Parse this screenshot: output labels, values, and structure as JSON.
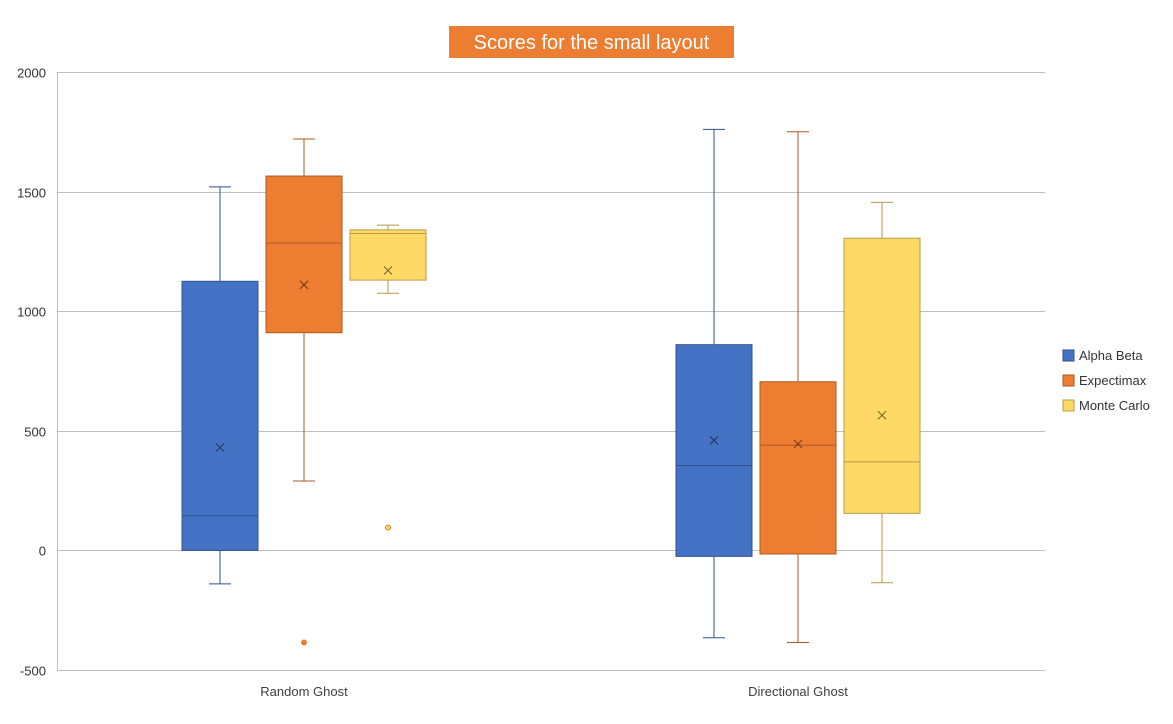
{
  "chart_data": {
    "type": "box",
    "title": "Scores for the small layout",
    "xlabel": "",
    "ylabel": "",
    "ylim": [
      -500,
      2000
    ],
    "yticks": [
      -500,
      0,
      500,
      1000,
      1500,
      2000
    ],
    "grid": true,
    "legend_position": "right",
    "categories": [
      "Random Ghost",
      "Directional Ghost"
    ],
    "series": [
      {
        "name": "Alpha Beta",
        "color": "#4472C4",
        "boxes": [
          {
            "category": "Random Ghost",
            "whisker_low": -140,
            "q1": 0,
            "median": 145,
            "q3": 1125,
            "whisker_high": 1520,
            "mean": 430,
            "outliers": []
          },
          {
            "category": "Directional Ghost",
            "whisker_low": -365,
            "q1": -25,
            "median": 355,
            "q3": 860,
            "whisker_high": 1760,
            "mean": 460,
            "outliers": []
          }
        ]
      },
      {
        "name": "Expectimax",
        "color": "#ED7D31",
        "boxes": [
          {
            "category": "Random Ghost",
            "whisker_low": 290,
            "q1": 910,
            "median": 1285,
            "q3": 1565,
            "whisker_high": 1720,
            "mean": 1110,
            "outliers": [
              -385
            ]
          },
          {
            "category": "Directional Ghost",
            "whisker_low": -385,
            "q1": -15,
            "median": 440,
            "q3": 705,
            "whisker_high": 1750,
            "mean": 445,
            "outliers": []
          }
        ]
      },
      {
        "name": "Monte Carlo",
        "color": "#FFD966",
        "boxes": [
          {
            "category": "Random Ghost",
            "whisker_low": 1075,
            "q1": 1130,
            "median": 1325,
            "q3": 1340,
            "whisker_high": 1360,
            "mean": 1170,
            "outliers": [
              95
            ]
          },
          {
            "category": "Directional Ghost",
            "whisker_low": -135,
            "q1": 155,
            "median": 370,
            "q3": 1305,
            "whisker_high": 1455,
            "mean": 565,
            "outliers": []
          }
        ]
      }
    ]
  }
}
